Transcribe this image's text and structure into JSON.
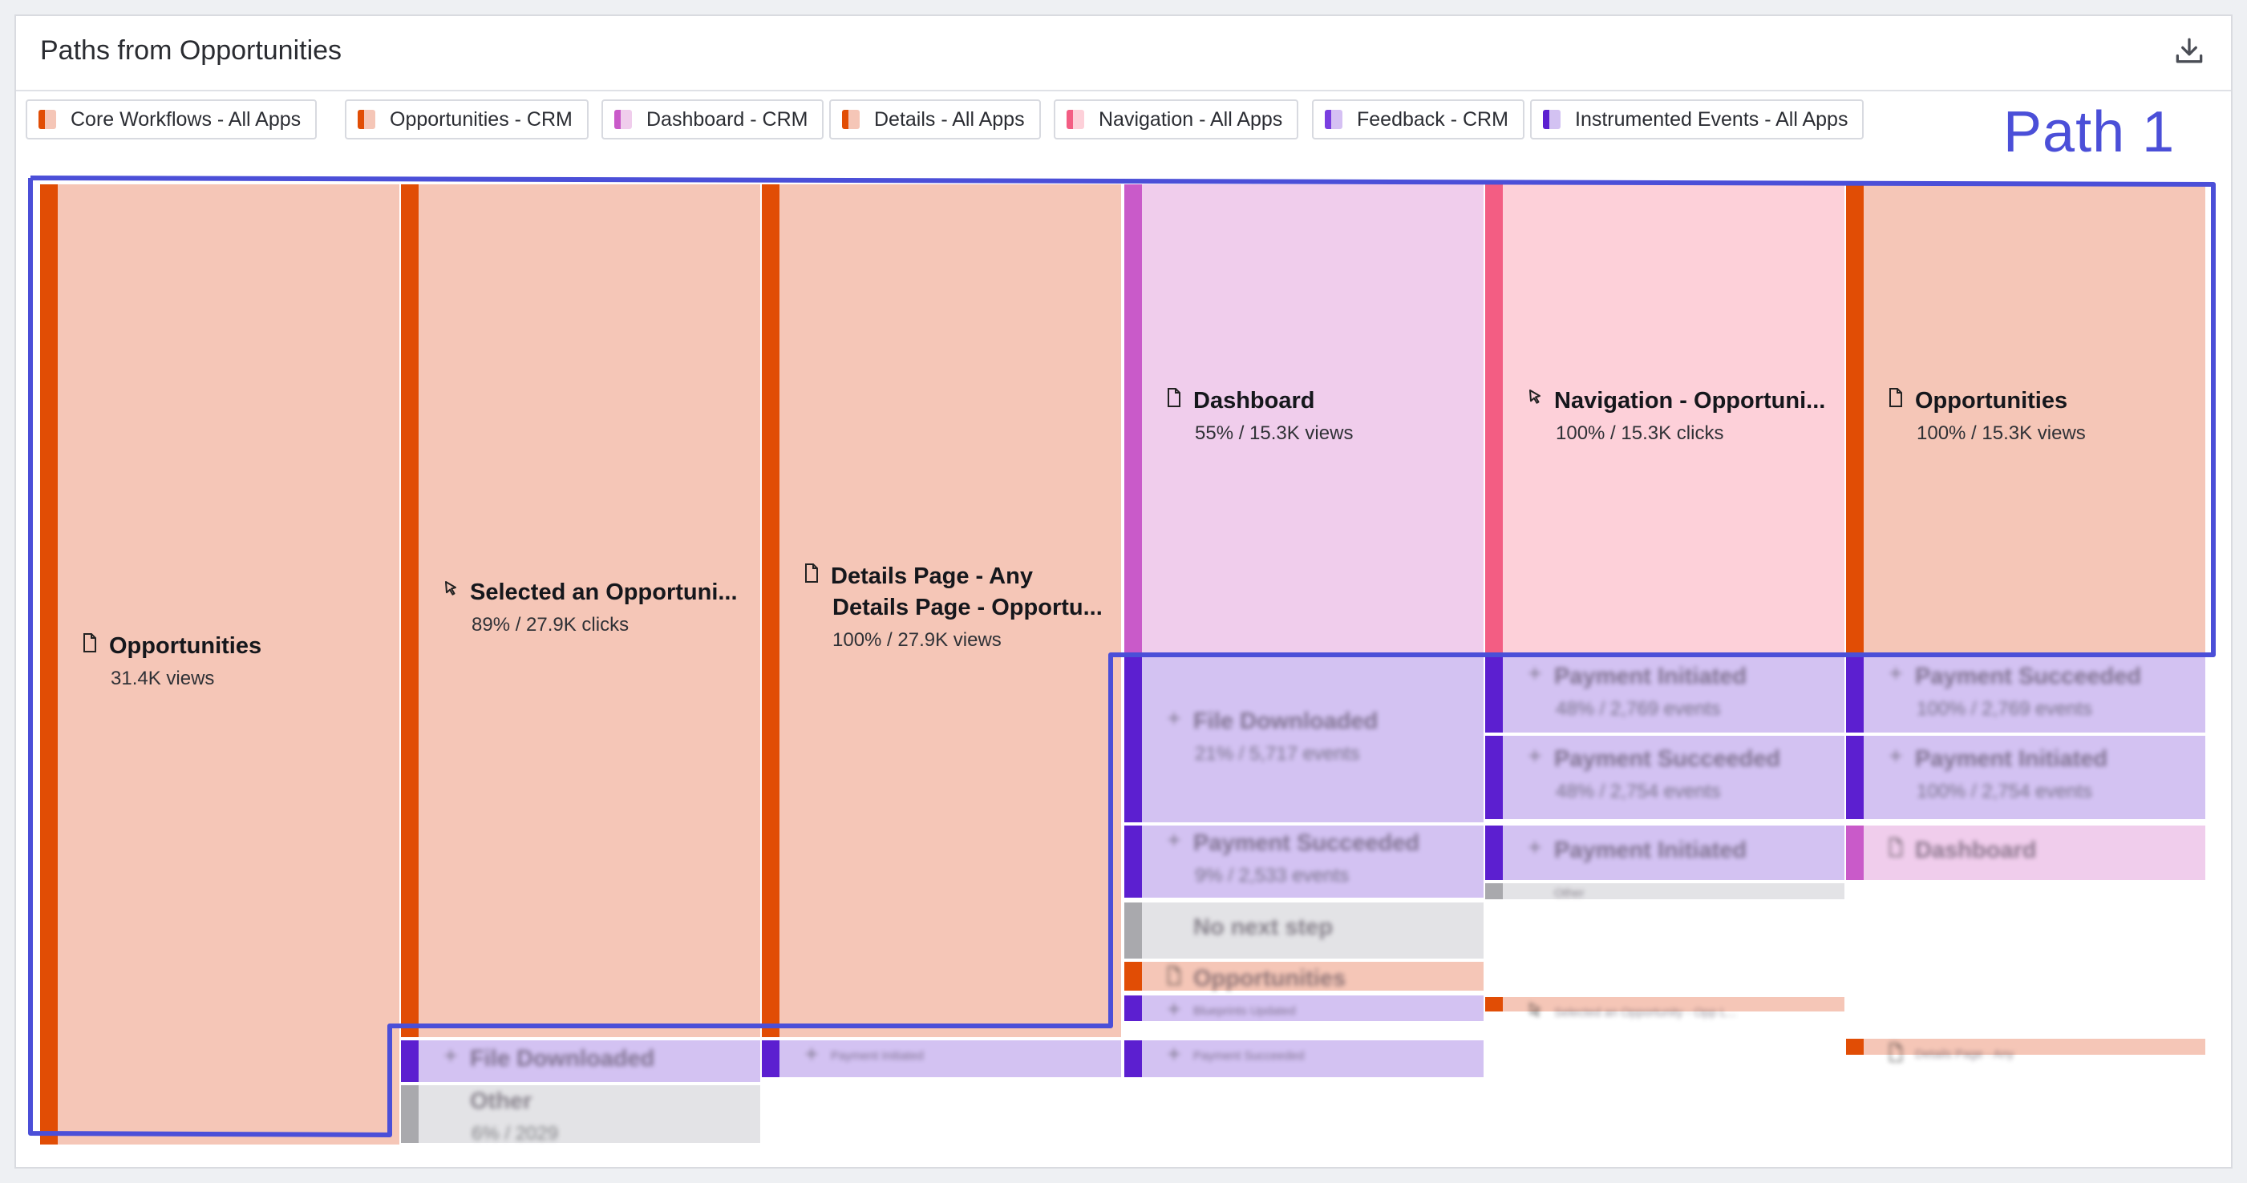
{
  "panel": {
    "title": "Paths from Opportunities",
    "download_icon": "download-icon"
  },
  "legend": [
    {
      "label": "Core Workflows - All Apps",
      "colors": [
        "#e14d05",
        "#f5c6b7"
      ]
    },
    {
      "label": "Opportunities - CRM",
      "colors": [
        "#e14d05",
        "#f5c6b7"
      ]
    },
    {
      "label": "Dashboard - CRM",
      "colors": [
        "#c95ac9",
        "#f0cdec"
      ]
    },
    {
      "label": "Details - All Apps",
      "colors": [
        "#e14d05",
        "#f5c6b7"
      ]
    },
    {
      "label": "Navigation - All Apps",
      "colors": [
        "#f35d83",
        "#fdd0d9"
      ]
    },
    {
      "label": "Feedback - CRM",
      "colors": [
        "#7a3fe0",
        "#d5c0f3"
      ]
    },
    {
      "label": "Instrumented Events - All Apps",
      "colors": [
        "#5c1fd0",
        "#d3c2f2"
      ]
    }
  ],
  "annotation": {
    "label": "Path 1",
    "color": "#4b4fd8"
  },
  "colors": {
    "orange": "#e14d05",
    "orange_fill": "#f5c6b7",
    "magenta": "#c95ac9",
    "magenta_fill": "#f0cdec",
    "pink": "#f35d83",
    "pink_fill": "#fdd0d9",
    "purple": "#5c1fd0",
    "purple_fill": "#d3c2f2",
    "gray": "#a9a9ad",
    "gray_fill": "#e3e3e6"
  },
  "nodes": [
    {
      "name": "Opportunities",
      "stat": "31.4K views",
      "icon": "page-icon",
      "kind": "orange"
    },
    {
      "name": "Selected an Opportuni...",
      "stat": "89% / 27.9K clicks",
      "icon": "cursor-icon",
      "kind": "orange"
    },
    {
      "name": "File Downloaded",
      "stat": "",
      "icon": "event-icon",
      "kind": "purple",
      "blur": true
    },
    {
      "name": "Other",
      "stat": "6% / 2029",
      "icon": "",
      "kind": "gray",
      "blur": true
    },
    {
      "name": "Details Page - Any",
      "name2": "Details Page - Opportu...",
      "stat": "100% / 27.9K views",
      "icon": "page-icon",
      "kind": "orange"
    },
    {
      "name": "Payment Initiated",
      "stat": "",
      "icon": "event-icon",
      "kind": "purple",
      "blur": true,
      "tiny": true
    },
    {
      "name": "Dashboard",
      "stat": "55% / 15.3K views",
      "icon": "page-icon",
      "kind": "magenta"
    },
    {
      "name": "File Downloaded",
      "stat": "21% / 5,717 events",
      "icon": "event-icon",
      "kind": "purple",
      "blur": true
    },
    {
      "name": "Payment Succeeded",
      "stat": "9% / 2,533 events",
      "icon": "event-icon",
      "kind": "purple",
      "blur": true
    },
    {
      "name": "No next step",
      "stat": "",
      "icon": "",
      "kind": "gray",
      "blur": true
    },
    {
      "name": "Opportunities",
      "stat": "",
      "icon": "page-icon",
      "kind": "orange",
      "blur": true
    },
    {
      "name": "Blueprints Updated",
      "stat": "",
      "icon": "event-icon",
      "kind": "purple",
      "blur": true,
      "tiny": true
    },
    {
      "name": "Payment Succeeded",
      "stat": "",
      "icon": "event-icon",
      "kind": "purple",
      "blur": true,
      "tiny": true
    },
    {
      "name": "Navigation - Opportuni...",
      "stat": "100% / 15.3K clicks",
      "icon": "cursor-icon",
      "kind": "pink"
    },
    {
      "name": "Payment Initiated",
      "stat": "48% / 2,769 events",
      "icon": "event-icon",
      "kind": "purple",
      "blur": true
    },
    {
      "name": "Payment Succeeded",
      "stat": "48% / 2,754 events",
      "icon": "event-icon",
      "kind": "purple",
      "blur": true
    },
    {
      "name": "Payment Initiated",
      "stat": "",
      "icon": "event-icon",
      "kind": "purple",
      "blur": true
    },
    {
      "name": "Other",
      "stat": "",
      "icon": "",
      "kind": "gray",
      "blur": true,
      "tiny": true
    },
    {
      "name": "Selected an Opportunity - Opp L...",
      "stat": "",
      "icon": "cursor-icon",
      "kind": "orange",
      "blur": true,
      "tiny": true
    },
    {
      "name": "Opportunities",
      "stat": "100% / 15.3K views",
      "icon": "page-icon",
      "kind": "orange"
    },
    {
      "name": "Payment Succeeded",
      "stat": "100% / 2,769 events",
      "icon": "event-icon",
      "kind": "purple",
      "blur": true
    },
    {
      "name": "Payment Initiated",
      "stat": "100% / 2,754 events",
      "icon": "event-icon",
      "kind": "purple",
      "blur": true
    },
    {
      "name": "Dashboard",
      "stat": "",
      "icon": "page-icon",
      "kind": "magenta",
      "blur": true
    },
    {
      "name": "Details Page - Any",
      "stat": "",
      "icon": "page-icon",
      "kind": "orange",
      "blur": true,
      "tiny": true
    }
  ]
}
